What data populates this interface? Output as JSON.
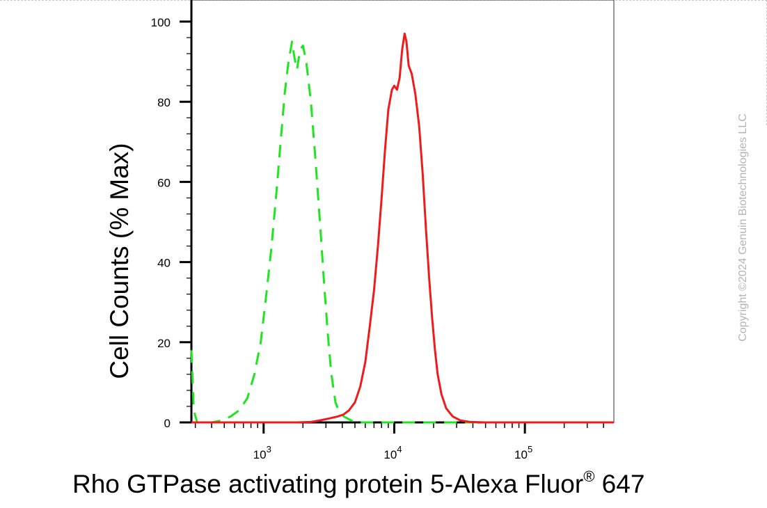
{
  "chart_data": {
    "type": "line",
    "xlabel": "Rho GTPase activating protein 5-Alexa Fluor",
    "xlabel_mark": "®",
    "xlabel_suffix": " 647",
    "ylabel": "Cell Counts (% Max)",
    "x_scale": "log",
    "xlim": [
      280,
      480000
    ],
    "ylim": [
      0,
      100
    ],
    "yticks": [
      0,
      20,
      40,
      60,
      80,
      100
    ],
    "xticks": [
      {
        "value": 1000,
        "base": "10",
        "exp": "3"
      },
      {
        "value": 10000,
        "base": "10",
        "exp": "4"
      },
      {
        "value": 100000,
        "base": "10",
        "exp": "5"
      }
    ],
    "grid": false,
    "series": [
      {
        "color": "#1ee61e",
        "dash": "dashed",
        "points": [
          [
            280,
            18
          ],
          [
            292,
            3
          ],
          [
            310,
            0
          ],
          [
            400,
            0
          ],
          [
            480,
            0.5
          ],
          [
            560,
            1.5
          ],
          [
            650,
            3
          ],
          [
            750,
            6
          ],
          [
            850,
            12
          ],
          [
            950,
            20
          ],
          [
            1050,
            32
          ],
          [
            1150,
            44
          ],
          [
            1250,
            57
          ],
          [
            1350,
            70
          ],
          [
            1450,
            82
          ],
          [
            1550,
            90
          ],
          [
            1650,
            95
          ],
          [
            1720,
            91
          ],
          [
            1800,
            88
          ],
          [
            1900,
            93
          ],
          [
            2000,
            94
          ],
          [
            2120,
            90
          ],
          [
            2300,
            80
          ],
          [
            2500,
            65
          ],
          [
            2700,
            50
          ],
          [
            2900,
            35
          ],
          [
            3100,
            22
          ],
          [
            3300,
            12
          ],
          [
            3550,
            5
          ],
          [
            3800,
            2.5
          ],
          [
            4100,
            1.5
          ],
          [
            4500,
            0.8
          ],
          [
            5000,
            0
          ],
          [
            10000,
            0
          ],
          [
            40000,
            0
          ],
          [
            480000,
            0
          ]
        ]
      },
      {
        "color": "#f01a1a",
        "dash": "solid",
        "points": [
          [
            280,
            0
          ],
          [
            1800,
            0
          ],
          [
            2300,
            0.1
          ],
          [
            2700,
            0.5
          ],
          [
            3200,
            1
          ],
          [
            3700,
            1.5
          ],
          [
            4100,
            2
          ],
          [
            4500,
            3
          ],
          [
            5000,
            5
          ],
          [
            5500,
            9
          ],
          [
            6000,
            15
          ],
          [
            6500,
            24
          ],
          [
            7000,
            33
          ],
          [
            7500,
            44
          ],
          [
            8000,
            56
          ],
          [
            8500,
            68
          ],
          [
            9000,
            78
          ],
          [
            9600,
            83
          ],
          [
            10000,
            84
          ],
          [
            10500,
            83
          ],
          [
            11000,
            86
          ],
          [
            11500,
            93
          ],
          [
            12000,
            97
          ],
          [
            12400,
            95
          ],
          [
            12900,
            89
          ],
          [
            13600,
            87
          ],
          [
            14500,
            82
          ],
          [
            15500,
            74
          ],
          [
            16500,
            62
          ],
          [
            17500,
            48
          ],
          [
            18500,
            36
          ],
          [
            19500,
            26
          ],
          [
            20500,
            18
          ],
          [
            21500,
            12
          ],
          [
            23000,
            7
          ],
          [
            25000,
            3.5
          ],
          [
            28000,
            1.5
          ],
          [
            32000,
            0.5
          ],
          [
            38000,
            0.1
          ],
          [
            50000,
            0
          ],
          [
            480000,
            0
          ]
        ]
      }
    ]
  },
  "copyright": "Copyright ©2024 Genuin Biotechnologies LLC"
}
